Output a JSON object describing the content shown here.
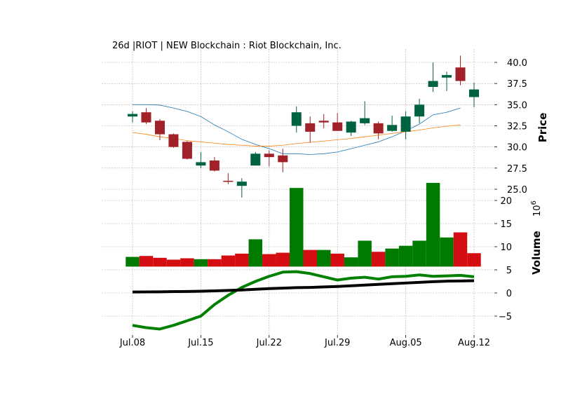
{
  "chart_data": [
    {
      "type": "candlestick",
      "title": "26d |RIOT | NEW Blockchain : Riot Blockchain, Inc.",
      "ylabel": "Price",
      "ylim": [
        23.5,
        41.8
      ],
      "yticks": [
        "25.0",
        "27.5",
        "30.0",
        "32.5",
        "35.0",
        "37.5",
        "40.0"
      ],
      "ytick_values": [
        25.0,
        27.5,
        30.0,
        32.5,
        35.0,
        37.5,
        40.0
      ],
      "grid": true,
      "colors": {
        "up": "#006340",
        "down": "#a02128",
        "ma_fast": "#1f77b4",
        "ma_slow": "#ff7f0e"
      },
      "candles": [
        {
          "date": "Jul.08",
          "o": 33.6,
          "h": 34.2,
          "l": 32.9,
          "c": 33.9
        },
        {
          "date": "Jul.09",
          "o": 34.1,
          "h": 34.6,
          "l": 32.7,
          "c": 32.9
        },
        {
          "date": "Jul.10",
          "o": 33.1,
          "h": 33.3,
          "l": 30.8,
          "c": 31.5
        },
        {
          "date": "Jul.11",
          "o": 31.5,
          "h": 31.6,
          "l": 29.9,
          "c": 30.0
        },
        {
          "date": "Jul.12",
          "o": 30.6,
          "h": 30.7,
          "l": 28.5,
          "c": 28.6
        },
        {
          "date": "Jul.15",
          "o": 27.8,
          "h": 29.4,
          "l": 27.5,
          "c": 28.2
        },
        {
          "date": "Jul.16",
          "o": 28.4,
          "h": 28.8,
          "l": 27.1,
          "c": 27.2
        },
        {
          "date": "Jul.17",
          "o": 26.0,
          "h": 26.9,
          "l": 25.6,
          "c": 25.9
        },
        {
          "date": "Jul.18",
          "o": 25.4,
          "h": 26.3,
          "l": 24.0,
          "c": 25.9
        },
        {
          "date": "Jul.19",
          "o": 27.8,
          "h": 29.4,
          "l": 27.8,
          "c": 29.2
        },
        {
          "date": "Jul.22",
          "o": 29.2,
          "h": 29.6,
          "l": 27.7,
          "c": 28.8
        },
        {
          "date": "Jul.23",
          "o": 29.0,
          "h": 29.8,
          "l": 27.0,
          "c": 28.2
        },
        {
          "date": "Jul.24",
          "o": 32.5,
          "h": 34.8,
          "l": 31.7,
          "c": 34.1
        },
        {
          "date": "Jul.25",
          "o": 32.8,
          "h": 33.6,
          "l": 30.5,
          "c": 31.8
        },
        {
          "date": "Jul.26",
          "o": 33.1,
          "h": 33.9,
          "l": 32.2,
          "c": 32.9
        },
        {
          "date": "Jul.29",
          "o": 32.9,
          "h": 34.0,
          "l": 31.9,
          "c": 31.9
        },
        {
          "date": "Jul.30",
          "o": 31.7,
          "h": 33.1,
          "l": 31.3,
          "c": 33.0
        },
        {
          "date": "Jul.31",
          "o": 32.8,
          "h": 35.4,
          "l": 32.6,
          "c": 33.4
        },
        {
          "date": "Aug.01",
          "o": 32.8,
          "h": 33.0,
          "l": 30.9,
          "c": 31.6
        },
        {
          "date": "Aug.02",
          "o": 31.9,
          "h": 33.7,
          "l": 31.8,
          "c": 32.6
        },
        {
          "date": "Aug.05",
          "o": 31.8,
          "h": 34.2,
          "l": 30.9,
          "c": 33.6
        },
        {
          "date": "Aug.06",
          "o": 33.6,
          "h": 35.7,
          "l": 32.8,
          "c": 35.0
        },
        {
          "date": "Aug.07",
          "o": 37.1,
          "h": 40.0,
          "l": 36.5,
          "c": 37.8
        },
        {
          "date": "Aug.08",
          "o": 38.2,
          "h": 38.9,
          "l": 36.6,
          "c": 38.5
        },
        {
          "date": "Aug.09",
          "o": 39.4,
          "h": 40.8,
          "l": 37.3,
          "c": 37.8
        },
        {
          "date": "Aug.12",
          "o": 35.9,
          "h": 37.6,
          "l": 34.7,
          "c": 36.8
        }
      ],
      "ma_fast": [
        35.0,
        35.0,
        34.95,
        34.6,
        34.2,
        33.6,
        32.6,
        31.8,
        30.9,
        30.3,
        29.8,
        29.2,
        29.2,
        29.1,
        29.2,
        29.4,
        29.8,
        30.2,
        30.6,
        31.2,
        31.9,
        32.7,
        33.8,
        34.1,
        34.6,
        null
      ],
      "ma_slow": [
        31.7,
        31.5,
        31.2,
        31.0,
        30.75,
        30.6,
        30.45,
        30.3,
        30.2,
        30.1,
        30.1,
        30.2,
        30.4,
        30.55,
        30.7,
        30.85,
        31.0,
        31.2,
        31.4,
        31.6,
        31.8,
        32.0,
        32.25,
        32.45,
        32.6,
        null
      ]
    },
    {
      "type": "bar",
      "ylabel": "Volume  $10^6$",
      "multiplier_label": "10",
      "multiplier_exponent": "6",
      "ylim": [
        -7.5,
        25
      ],
      "yticks": [
        "−5",
        "0",
        "5",
        "10",
        "15",
        "20"
      ],
      "ytick_values": [
        -5,
        0,
        5,
        10,
        15,
        20
      ],
      "xticks": [
        "Jul.08",
        "Jul.15",
        "Jul.22",
        "Jul.29",
        "Aug.05",
        "Aug.12"
      ],
      "xtick_indices": [
        0,
        5,
        10,
        15,
        20,
        25
      ],
      "bar_base": 5.7,
      "volumes": [
        7.8,
        8.0,
        7.6,
        7.2,
        7.5,
        7.3,
        7.3,
        8.1,
        8.5,
        11.6,
        8.4,
        8.7,
        22.7,
        9.3,
        9.3,
        8.5,
        7.7,
        11.3,
        8.9,
        9.6,
        10.2,
        11.3,
        23.8,
        12.0,
        13.1,
        8.6
      ],
      "bar_up": [
        true,
        false,
        false,
        false,
        false,
        true,
        false,
        false,
        false,
        true,
        false,
        false,
        true,
        false,
        true,
        false,
        true,
        true,
        false,
        true,
        true,
        true,
        true,
        true,
        false,
        false
      ],
      "colors": {
        "up": "#007a00",
        "down": "#d40d12",
        "line_green": "#008000",
        "line_black": "#000000"
      },
      "series": [
        {
          "values": [
            -7.0,
            -7.5,
            -7.8,
            -7.0,
            -6.0,
            -5.0,
            -2.5,
            -0.5,
            1.2,
            2.5,
            3.6,
            4.5,
            4.6,
            4.2,
            3.5,
            2.8,
            3.2,
            3.4,
            3.0,
            3.5,
            3.6,
            3.9,
            3.6,
            3.7,
            3.8,
            3.5
          ]
        },
        {
          "values": [
            0.2,
            0.22,
            0.25,
            0.3,
            0.33,
            0.37,
            0.45,
            0.55,
            0.65,
            0.8,
            0.95,
            1.05,
            1.15,
            1.2,
            1.3,
            1.4,
            1.55,
            1.7,
            1.85,
            2.0,
            2.15,
            2.3,
            2.45,
            2.55,
            2.6,
            2.65
          ]
        }
      ]
    }
  ]
}
